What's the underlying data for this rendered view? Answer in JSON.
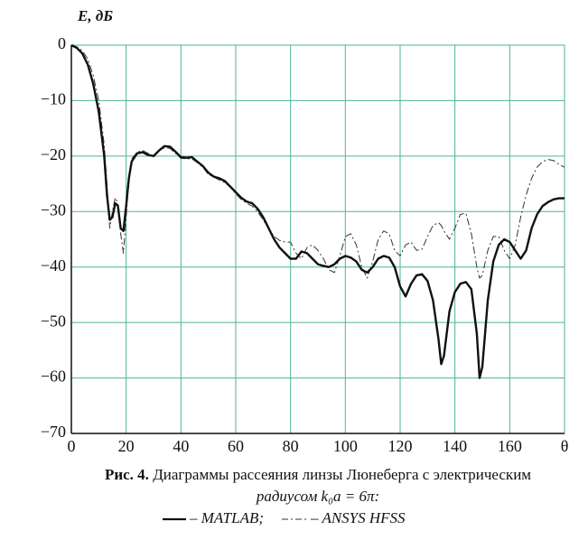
{
  "chart_data": {
    "type": "line",
    "y_axis_label": "E, дБ",
    "x": [
      0,
      2,
      4,
      6,
      8,
      10,
      12,
      13,
      14,
      15,
      16,
      17,
      18,
      19,
      20,
      21,
      22,
      24,
      26,
      28,
      30,
      32,
      34,
      36,
      38,
      40,
      42,
      44,
      46,
      48,
      50,
      52,
      54,
      56,
      58,
      60,
      62,
      64,
      66,
      68,
      70,
      72,
      74,
      76,
      78,
      80,
      82,
      84,
      86,
      88,
      90,
      92,
      94,
      96,
      98,
      100,
      102,
      104,
      106,
      108,
      110,
      112,
      114,
      116,
      118,
      120,
      122,
      124,
      126,
      128,
      130,
      132,
      134,
      135,
      136,
      138,
      140,
      142,
      144,
      146,
      148,
      149,
      150,
      152,
      154,
      156,
      158,
      160,
      162,
      164,
      166,
      168,
      170,
      172,
      174,
      176,
      178,
      180
    ],
    "series": [
      {
        "name": "MATLAB",
        "color": "#111111",
        "dash": false,
        "values": [
          0,
          -0.5,
          -1.5,
          -3.5,
          -7,
          -12,
          -20,
          -27,
          -31.5,
          -31,
          -28.5,
          -29,
          -33,
          -33.5,
          -29,
          -24,
          -21,
          -19.5,
          -19.3,
          -19.8,
          -20,
          -19,
          -18.2,
          -18.3,
          -19.2,
          -20.2,
          -20.3,
          -20.2,
          -21,
          -21.8,
          -23,
          -23.7,
          -24,
          -24.5,
          -25.5,
          -26.5,
          -27.5,
          -28.2,
          -28.5,
          -29.5,
          -31,
          -33,
          -35,
          -36.5,
          -37.5,
          -38.5,
          -38.5,
          -37.2,
          -37.5,
          -38.5,
          -39.5,
          -39.8,
          -40,
          -39.5,
          -38.5,
          -38,
          -38.3,
          -39,
          -40.5,
          -41,
          -40,
          -38.5,
          -38,
          -38.3,
          -40,
          -43.5,
          -45.3,
          -43,
          -41.5,
          -41.3,
          -42.5,
          -46,
          -53,
          -57.5,
          -56,
          -48,
          -44.5,
          -43,
          -42.7,
          -44,
          -52,
          -60,
          -58,
          -46,
          -39,
          -36,
          -35,
          -35.5,
          -37,
          -38.5,
          -37,
          -33,
          -30.5,
          -29,
          -28.3,
          -27.8,
          -27.6,
          -27.6
        ]
      },
      {
        "name": "ANSYS HFSS",
        "color": "#333333",
        "dash": true,
        "values": [
          0,
          -0.3,
          -1,
          -2.5,
          -5.5,
          -10,
          -18,
          -25,
          -33,
          -30,
          -27.5,
          -28.5,
          -34,
          -37.5,
          -31,
          -24,
          -20.5,
          -19.3,
          -19,
          -19.5,
          -20,
          -19,
          -18.5,
          -18.6,
          -19.5,
          -20.4,
          -20.5,
          -20.5,
          -21.2,
          -22,
          -23.3,
          -23.8,
          -24.3,
          -24.8,
          -25.6,
          -26.8,
          -27.8,
          -28.5,
          -29,
          -30,
          -31.5,
          -33,
          -34.5,
          -35.2,
          -35.5,
          -35.5,
          -37.5,
          -38.5,
          -36.5,
          -36,
          -37,
          -38.5,
          -40.5,
          -41,
          -38,
          -34.5,
          -34,
          -36,
          -40,
          -42,
          -39,
          -35,
          -33.5,
          -34,
          -37,
          -38,
          -36,
          -35.5,
          -37,
          -36.8,
          -34.5,
          -32.5,
          -32,
          -32.5,
          -33.5,
          -35,
          -33,
          -30.5,
          -30.3,
          -34,
          -40,
          -42,
          -41.5,
          -37,
          -34.5,
          -34.5,
          -37,
          -38.5,
          -36,
          -31,
          -27,
          -24,
          -22,
          -21,
          -20.6,
          -20.8,
          -21.5,
          -22
        ]
      }
    ],
    "xlim": [
      0,
      180
    ],
    "ylim": [
      -70,
      0
    ],
    "xticks": [
      0,
      20,
      40,
      60,
      80,
      100,
      120,
      140,
      160,
      {
        "value": 180,
        "label": "θ"
      }
    ],
    "yticks": [
      {
        "value": 0,
        "label": "0"
      },
      {
        "value": -10,
        "label": "−10"
      },
      {
        "value": -20,
        "label": "−20"
      },
      {
        "value": -30,
        "label": "−30"
      },
      {
        "value": -40,
        "label": "−40"
      },
      {
        "value": -50,
        "label": "−50"
      },
      {
        "value": -60,
        "label": "−60"
      },
      {
        "value": -70,
        "label": "−70"
      }
    ],
    "grid": true,
    "grid_color": "#4fb39c",
    "caption": {
      "figure_label": "Рис. 4.",
      "line1": "Диаграммы рассеяния линзы Люнеберга с электрическим",
      "line2": "радиусом  k₀a = 6π:",
      "legend_separator": "–",
      "legend_delimiter": ";"
    }
  }
}
